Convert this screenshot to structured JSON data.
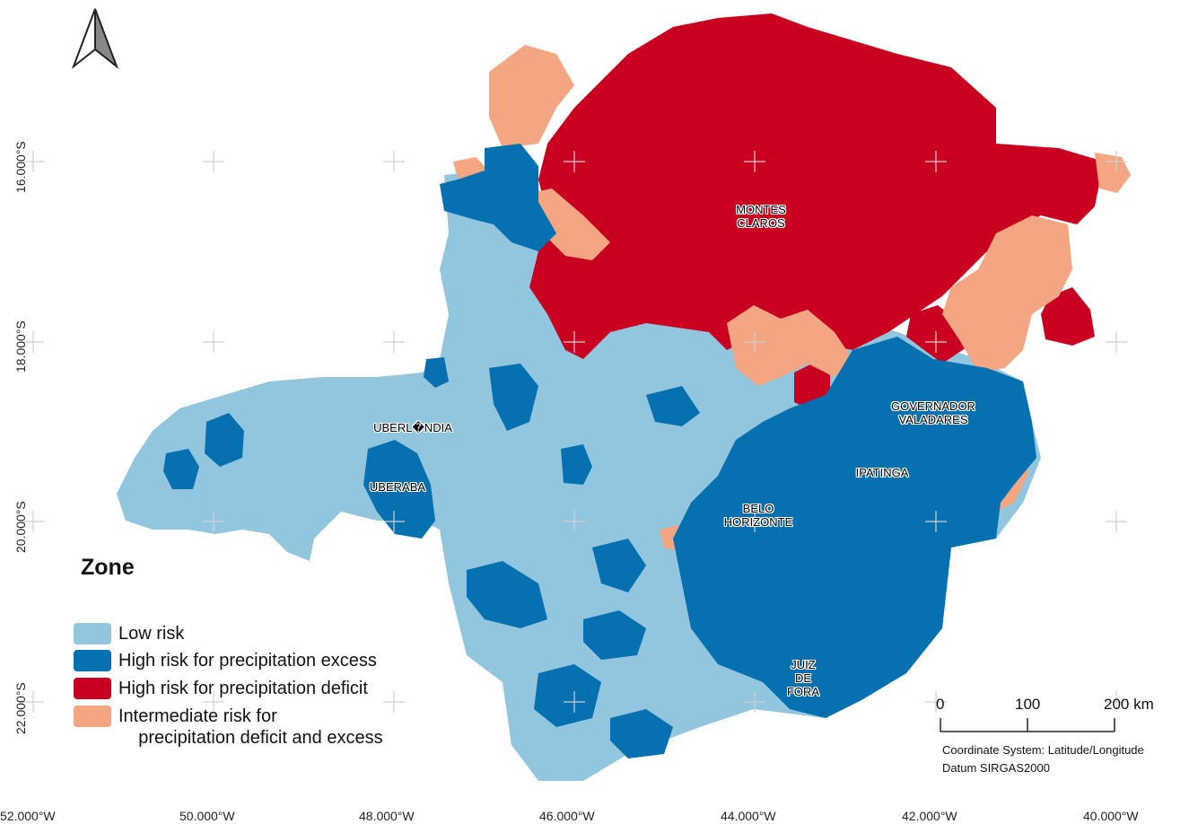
{
  "map": {
    "colors": {
      "low_risk": "#92c5de",
      "excess": "#0571b0",
      "deficit": "#ca0020",
      "intermediate": "#f4a582"
    },
    "north_arrow": "north-arrow-icon",
    "longitude_labels": [
      "52.000°W",
      "50.000°W",
      "48.000°W",
      "46.000°W",
      "44.000°W",
      "42.000°W",
      "40.000°W"
    ],
    "latitude_labels": [
      "16.000°S",
      "18.000°S",
      "20.000°S",
      "22.000°S"
    ],
    "cities": {
      "montes_claros": "MONTES\nCLAROS",
      "governador_valadares": "GOVERNADOR\nVALADARES",
      "uberlandia": "UBERL�NDIA",
      "uberaba": "UBERABA",
      "ipatinga": "IPATINGA",
      "belo_horizonte": "BELO\nHORIZONTE",
      "juiz_de_fora": "JUIZ\nDE\nFORA"
    },
    "legend": {
      "title": "Zone",
      "items": [
        {
          "label": "Low risk",
          "color": "#92c5de"
        },
        {
          "label": "High risk for precipitation excess",
          "color": "#0571b0"
        },
        {
          "label": "High risk for precipitation deficit",
          "color": "#ca0020"
        },
        {
          "label": "Intermediate risk for\n    precipitation deficit and excess",
          "color": "#f4a582"
        }
      ]
    },
    "scale_bar": {
      "labels": [
        "0",
        "100",
        "200 km"
      ]
    },
    "coordinate_system": "Coordinate System: Latitude/Longitude",
    "datum": "Datum SIRGAS2000"
  }
}
